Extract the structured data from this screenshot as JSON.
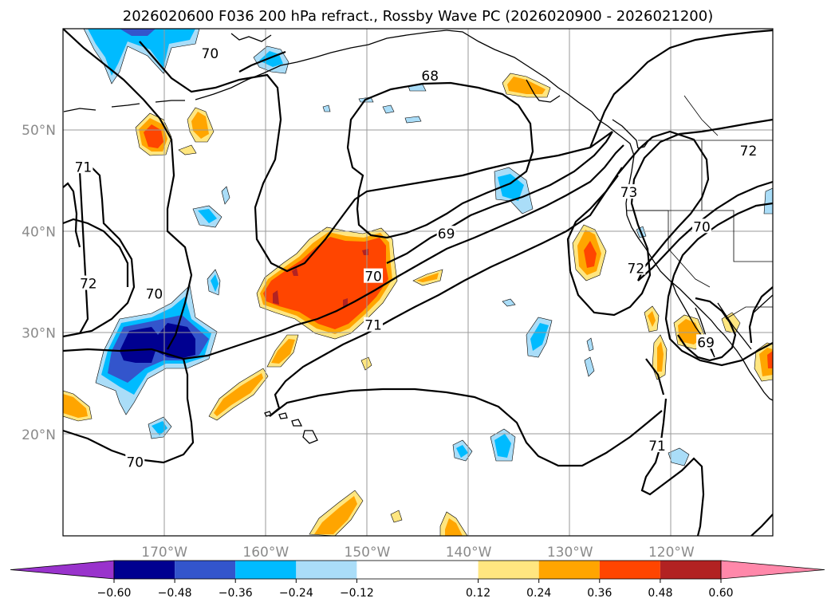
{
  "chart_data": {
    "type": "map-contour",
    "title": "2026020600 F036 200 hPa refract., Rossby Wave PC (2026020900 - 2026021200)",
    "lon_range": [
      -180,
      -110
    ],
    "lat_range": [
      10,
      60
    ],
    "lon_ticks": [
      {
        "value": -170,
        "label": "170°W"
      },
      {
        "value": -160,
        "label": "160°W"
      },
      {
        "value": -150,
        "label": "150°W"
      },
      {
        "value": -140,
        "label": "140°W"
      },
      {
        "value": -130,
        "label": "130°W"
      },
      {
        "value": -120,
        "label": "120°W"
      }
    ],
    "lat_ticks": [
      {
        "value": 20,
        "label": "20°N"
      },
      {
        "value": 30,
        "label": "30°N"
      },
      {
        "value": 40,
        "label": "40°N"
      },
      {
        "value": 50,
        "label": "50°N"
      }
    ],
    "grid": true,
    "colorbar": {
      "orientation": "horizontal",
      "extend": "both",
      "boundaries": [
        -0.6,
        -0.48,
        -0.36,
        -0.24,
        -0.12,
        0.12,
        0.24,
        0.36,
        0.48,
        0.6
      ],
      "tick_labels": [
        "−0.60",
        "−0.48",
        "−0.36",
        "−0.24",
        "−0.12",
        "0.12",
        "0.24",
        "0.36",
        "0.48",
        "0.60"
      ],
      "colors": [
        "#9933cc",
        "#000090",
        "#3355cc",
        "#00bbff",
        "#aaddf8",
        "#ffffff",
        "#ffe680",
        "#ffa500",
        "#ff4500",
        "#b22222",
        "#ff88aa"
      ]
    },
    "contour_labels": [
      {
        "text": "70",
        "lon": -165.5,
        "lat": 57.5
      },
      {
        "text": "68",
        "lon": -143.8,
        "lat": 55.3
      },
      {
        "text": "71",
        "lon": -178.0,
        "lat": 46.3
      },
      {
        "text": "72",
        "lon": -177.5,
        "lat": 34.8
      },
      {
        "text": "70",
        "lon": -171.0,
        "lat": 33.8
      },
      {
        "text": "69",
        "lon": -142.2,
        "lat": 39.7
      },
      {
        "text": "70",
        "lon": -149.4,
        "lat": 35.5
      },
      {
        "text": "71",
        "lon": -149.4,
        "lat": 30.7
      },
      {
        "text": "70",
        "lon": -172.9,
        "lat": 17.2
      },
      {
        "text": "73",
        "lon": -124.2,
        "lat": 43.8
      },
      {
        "text": "72",
        "lon": -123.5,
        "lat": 36.3
      },
      {
        "text": "70",
        "lon": -117.0,
        "lat": 40.4
      },
      {
        "text": "72",
        "lon": -112.4,
        "lat": 47.9
      },
      {
        "text": "69",
        "lon": -116.6,
        "lat": 29.0
      },
      {
        "text": "71",
        "lon": -121.4,
        "lat": 18.8
      }
    ]
  }
}
